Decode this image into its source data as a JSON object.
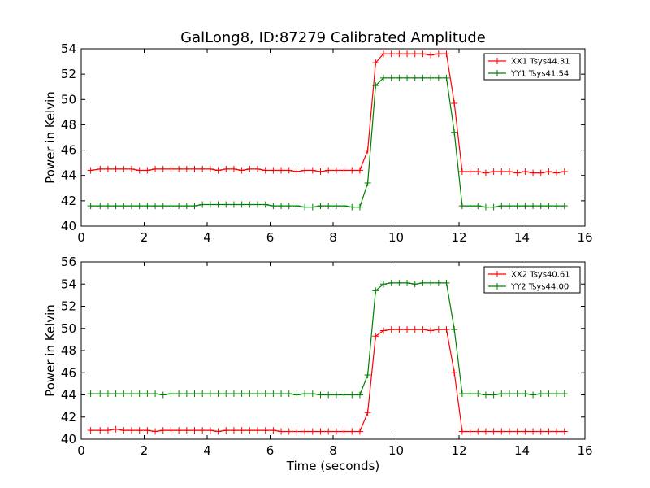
{
  "title": "GalLong8, ID:87279 Calibrated Amplitude",
  "chart_data": [
    {
      "type": "line",
      "ylabel": "Power in Kelvin",
      "xlabel": "",
      "xlim": [
        0,
        16
      ],
      "ylim": [
        40,
        54
      ],
      "xticks": [
        0,
        2,
        4,
        6,
        8,
        10,
        12,
        14,
        16
      ],
      "yticks": [
        40,
        42,
        44,
        46,
        48,
        50,
        52,
        54
      ],
      "legend_position": "top-right",
      "grid": false,
      "x": [
        0.3,
        0.6,
        0.85,
        1.1,
        1.35,
        1.6,
        1.85,
        2.1,
        2.35,
        2.6,
        2.85,
        3.1,
        3.35,
        3.6,
        3.85,
        4.1,
        4.35,
        4.6,
        4.85,
        5.1,
        5.35,
        5.6,
        5.85,
        6.1,
        6.35,
        6.6,
        6.85,
        7.1,
        7.35,
        7.6,
        7.85,
        8.1,
        8.35,
        8.6,
        8.85,
        9.1,
        9.35,
        9.6,
        9.85,
        10.1,
        10.35,
        10.6,
        10.85,
        11.1,
        11.35,
        11.6,
        11.85,
        12.1,
        12.35,
        12.6,
        12.85,
        13.1,
        13.35,
        13.6,
        13.85,
        14.1,
        14.35,
        14.6,
        14.85,
        15.1,
        15.35
      ],
      "series": [
        {
          "name": "XX1 Tsys44.31",
          "color": "#ff0000",
          "values": [
            44.4,
            44.5,
            44.5,
            44.5,
            44.5,
            44.5,
            44.4,
            44.4,
            44.5,
            44.5,
            44.5,
            44.5,
            44.5,
            44.5,
            44.5,
            44.5,
            44.4,
            44.5,
            44.5,
            44.4,
            44.5,
            44.5,
            44.4,
            44.4,
            44.4,
            44.4,
            44.3,
            44.4,
            44.4,
            44.3,
            44.4,
            44.4,
            44.4,
            44.4,
            44.4,
            46.0,
            52.9,
            53.6,
            53.6,
            53.6,
            53.6,
            53.6,
            53.6,
            53.5,
            53.6,
            53.6,
            49.7,
            44.3,
            44.3,
            44.3,
            44.2,
            44.3,
            44.3,
            44.3,
            44.2,
            44.3,
            44.2,
            44.2,
            44.3,
            44.2,
            44.3
          ]
        },
        {
          "name": "YY1 Tsys41.54",
          "color": "#008000",
          "values": [
            41.6,
            41.6,
            41.6,
            41.6,
            41.6,
            41.6,
            41.6,
            41.6,
            41.6,
            41.6,
            41.6,
            41.6,
            41.6,
            41.6,
            41.7,
            41.7,
            41.7,
            41.7,
            41.7,
            41.7,
            41.7,
            41.7,
            41.7,
            41.6,
            41.6,
            41.6,
            41.6,
            41.5,
            41.5,
            41.6,
            41.6,
            41.6,
            41.6,
            41.5,
            41.5,
            43.4,
            51.1,
            51.7,
            51.7,
            51.7,
            51.7,
            51.7,
            51.7,
            51.7,
            51.7,
            51.7,
            47.4,
            41.6,
            41.6,
            41.6,
            41.5,
            41.5,
            41.6,
            41.6,
            41.6,
            41.6,
            41.6,
            41.6,
            41.6,
            41.6,
            41.6
          ]
        }
      ]
    },
    {
      "type": "line",
      "ylabel": "Power in Kelvin",
      "xlabel": "Time (seconds)",
      "xlim": [
        0,
        16
      ],
      "ylim": [
        40,
        56
      ],
      "xticks": [
        0,
        2,
        4,
        6,
        8,
        10,
        12,
        14,
        16
      ],
      "yticks": [
        40,
        42,
        44,
        46,
        48,
        50,
        52,
        54,
        56
      ],
      "legend_position": "top-right",
      "grid": false,
      "x": [
        0.3,
        0.6,
        0.85,
        1.1,
        1.35,
        1.6,
        1.85,
        2.1,
        2.35,
        2.6,
        2.85,
        3.1,
        3.35,
        3.6,
        3.85,
        4.1,
        4.35,
        4.6,
        4.85,
        5.1,
        5.35,
        5.6,
        5.85,
        6.1,
        6.35,
        6.6,
        6.85,
        7.1,
        7.35,
        7.6,
        7.85,
        8.1,
        8.35,
        8.6,
        8.85,
        9.1,
        9.35,
        9.6,
        9.85,
        10.1,
        10.35,
        10.6,
        10.85,
        11.1,
        11.35,
        11.6,
        11.85,
        12.1,
        12.35,
        12.6,
        12.85,
        13.1,
        13.35,
        13.6,
        13.85,
        14.1,
        14.35,
        14.6,
        14.85,
        15.1,
        15.35
      ],
      "series": [
        {
          "name": "XX2 Tsys40.61",
          "color": "#ff0000",
          "values": [
            40.8,
            40.8,
            40.8,
            40.9,
            40.8,
            40.8,
            40.8,
            40.8,
            40.7,
            40.8,
            40.8,
            40.8,
            40.8,
            40.8,
            40.8,
            40.8,
            40.7,
            40.8,
            40.8,
            40.8,
            40.8,
            40.8,
            40.8,
            40.8,
            40.7,
            40.7,
            40.7,
            40.7,
            40.7,
            40.7,
            40.7,
            40.7,
            40.7,
            40.7,
            40.7,
            42.4,
            49.3,
            49.8,
            49.9,
            49.9,
            49.9,
            49.9,
            49.9,
            49.8,
            49.9,
            49.9,
            46.0,
            40.7,
            40.7,
            40.7,
            40.7,
            40.7,
            40.7,
            40.7,
            40.7,
            40.7,
            40.7,
            40.7,
            40.7,
            40.7,
            40.7
          ]
        },
        {
          "name": "YY2 Tsys44.00",
          "color": "#008000",
          "values": [
            44.1,
            44.1,
            44.1,
            44.1,
            44.1,
            44.1,
            44.1,
            44.1,
            44.1,
            44.0,
            44.1,
            44.1,
            44.1,
            44.1,
            44.1,
            44.1,
            44.1,
            44.1,
            44.1,
            44.1,
            44.1,
            44.1,
            44.1,
            44.1,
            44.1,
            44.1,
            44.0,
            44.1,
            44.1,
            44.0,
            44.0,
            44.0,
            44.0,
            44.0,
            44.0,
            45.8,
            53.4,
            54.0,
            54.1,
            54.1,
            54.1,
            54.0,
            54.1,
            54.1,
            54.1,
            54.1,
            49.9,
            44.1,
            44.1,
            44.1,
            44.0,
            44.0,
            44.1,
            44.1,
            44.1,
            44.1,
            44.0,
            44.1,
            44.1,
            44.1,
            44.1
          ]
        }
      ]
    }
  ]
}
